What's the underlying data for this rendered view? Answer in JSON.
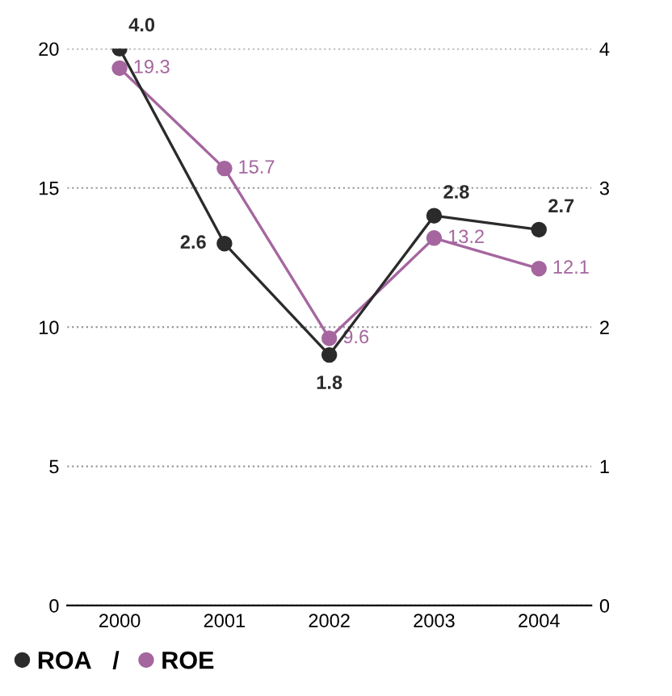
{
  "chart_data": {
    "type": "line",
    "categories": [
      "2000",
      "2001",
      "2002",
      "2003",
      "2004"
    ],
    "series": [
      {
        "name": "ROA",
        "color": "#2b2b2b",
        "values": [
          4.0,
          2.6,
          1.8,
          2.8,
          2.7
        ],
        "axis": "y2",
        "value_labels": [
          "4.0",
          "2.6",
          "1.8",
          "2.8",
          "2.7"
        ]
      },
      {
        "name": "ROE",
        "color": "#a5669f",
        "values": [
          19.3,
          15.7,
          9.6,
          13.2,
          12.1
        ],
        "value_labels": [
          "19.3",
          "15.7",
          "9.6",
          "13.2",
          "12.1"
        ]
      }
    ],
    "ylim": [
      0,
      20
    ],
    "yticks": [
      0,
      5,
      10,
      15,
      20
    ],
    "y2lim": [
      0,
      4
    ],
    "y2ticks": [
      0,
      1,
      2,
      3,
      4
    ],
    "grid": "y",
    "marker": "circle",
    "line_style": "solid",
    "legend": "bottom left",
    "annotations": [
      "/"
    ]
  }
}
